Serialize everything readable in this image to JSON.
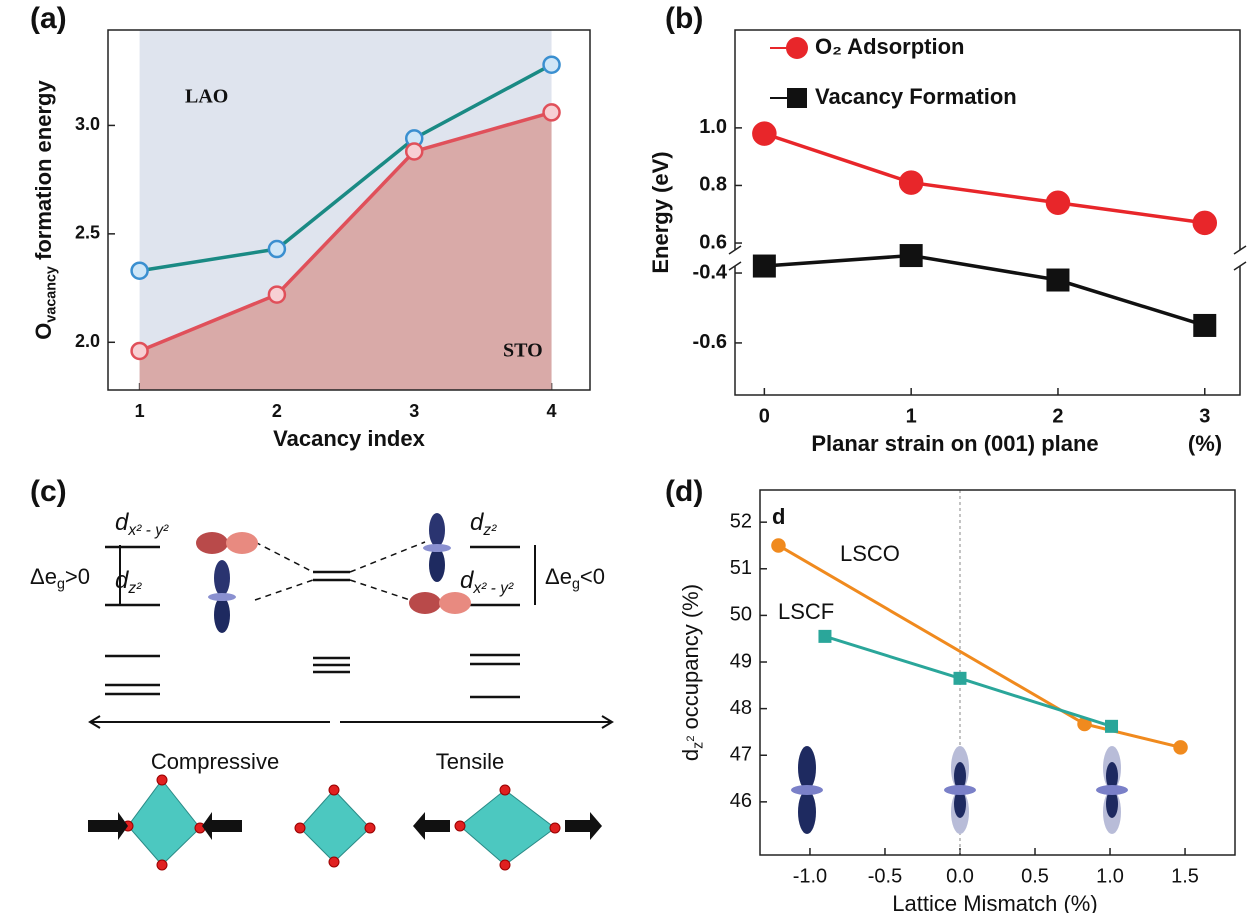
{
  "chart_data": [
    {
      "type": "line",
      "panel_label": "(a)",
      "y_label": {
        "main": "O",
        "sub": "vacancy",
        "rest": " formation energy"
      },
      "x_label": "Vacancy index",
      "x": [
        1,
        2,
        3,
        4
      ],
      "xlim": [
        0.77,
        4.28
      ],
      "xticks": [
        1,
        2,
        3,
        4
      ],
      "ylim": [
        1.78,
        3.44
      ],
      "yticks": [
        {
          "value": 2,
          "label": "2.0"
        },
        {
          "value": 2.5,
          "label": "2.5"
        },
        {
          "value": 3,
          "label": "3.0"
        }
      ],
      "shade_color": "#dfe4ee",
      "series": [
        {
          "name": "LAO",
          "color": "#1a8a84",
          "marker": "circle",
          "marker_fill": "#cfe6f7",
          "marker_edge": "#3a8fd0",
          "label_color": "#3a6fc4",
          "values": [
            2.33,
            2.43,
            2.94,
            3.28
          ]
        },
        {
          "name": "STO",
          "color": "#e0505a",
          "marker": "circle",
          "marker_fill": "#f7d0d4",
          "marker_edge": "#e0505a",
          "label_color": "#d2703a",
          "fill_area": "#d9aaa8",
          "values": [
            1.96,
            2.22,
            2.88,
            3.06
          ]
        }
      ]
    },
    {
      "type": "line",
      "panel_label": "(b)",
      "y_label": {
        "main": "Energy (eV)"
      },
      "x_label": "Planar strain on (001) plane",
      "x_unit": "(%)",
      "x": [
        0,
        1,
        2,
        3
      ],
      "xlim": [
        -0.2,
        3.24
      ],
      "xticks": [
        0,
        1,
        2,
        3
      ],
      "ylim": [
        0.548,
        1.34
      ],
      "yticks": [
        {
          "value": 1,
          "label": "1.0"
        },
        0.8,
        0.6
      ],
      "y2lim": [
        -0.749,
        -0.357
      ],
      "y2ticks": [
        -0.4,
        -0.6
      ],
      "broken_axis": true,
      "legend": "upper left",
      "series": [
        {
          "name": "O₂ Adsorption",
          "color": "#e8262a",
          "marker": "circle",
          "marker_fill": "#e8262a",
          "marker_edge": "#e8262a",
          "values": [
            0.98,
            0.81,
            0.74,
            0.67
          ]
        },
        {
          "name": "Vacancy Formation",
          "color": "#111111",
          "marker": "square",
          "marker_fill": "#111111",
          "marker_edge": "#111111",
          "axis": "y2",
          "values": [
            -0.38,
            -0.35,
            -0.42,
            -0.55
          ]
        }
      ]
    },
    {
      "type": "line",
      "panel_label": "(d)",
      "inset_label": "d",
      "y_label": {
        "main": "d",
        "sub": "z",
        "subsup": "2",
        "rest": " occupancy (%)"
      },
      "x_label": "Lattice Mismatch (%)",
      "xlim": [
        -1.333,
        1.833
      ],
      "xticks": [
        {
          "value": -1,
          "label": "-1.0"
        },
        -0.5,
        {
          "value": 0,
          "label": "0.0"
        },
        0.5,
        {
          "value": 1,
          "label": "1.0"
        },
        1.5
      ],
      "ylim": [
        44.86,
        52.69
      ],
      "yticks": [
        46,
        47,
        48,
        49,
        50,
        51,
        52
      ],
      "reference_line_x": 0,
      "series": [
        {
          "name": "LSCO",
          "color": "#f08a1e",
          "marker": "circle",
          "marker_fill": "#f08a1e",
          "marker_edge": "#f08a1e",
          "label_color": "#333333",
          "x": [
            -1.21,
            0.83,
            1.47
          ],
          "values": [
            51.5,
            47.67,
            47.17
          ]
        },
        {
          "name": "LSCF",
          "color": "#2aa69a",
          "marker": "square",
          "marker_fill": "#2aa69a",
          "marker_edge": "#2aa69a",
          "label_color": "#333333",
          "x": [
            -0.9,
            0.0,
            1.01
          ],
          "values": [
            49.55,
            48.65,
            47.62
          ]
        }
      ]
    }
  ],
  "diagram": {
    "panel_label": "(c)",
    "labels": [
      {
        "main": "d",
        "sub": "x² - y²"
      },
      {
        "main": "d",
        "sub": "z²"
      },
      {
        "main": "d",
        "sub": "z²"
      },
      {
        "main": "d",
        "sub": "x² - y²"
      }
    ],
    "gaps": [
      {
        "main": "Δe",
        "sub": "g",
        "rest": ">0"
      },
      {
        "main": "Δe",
        "sub": "g",
        "rest": "<0"
      }
    ],
    "compressive": "Compressive",
    "tensile": "Tensile"
  }
}
